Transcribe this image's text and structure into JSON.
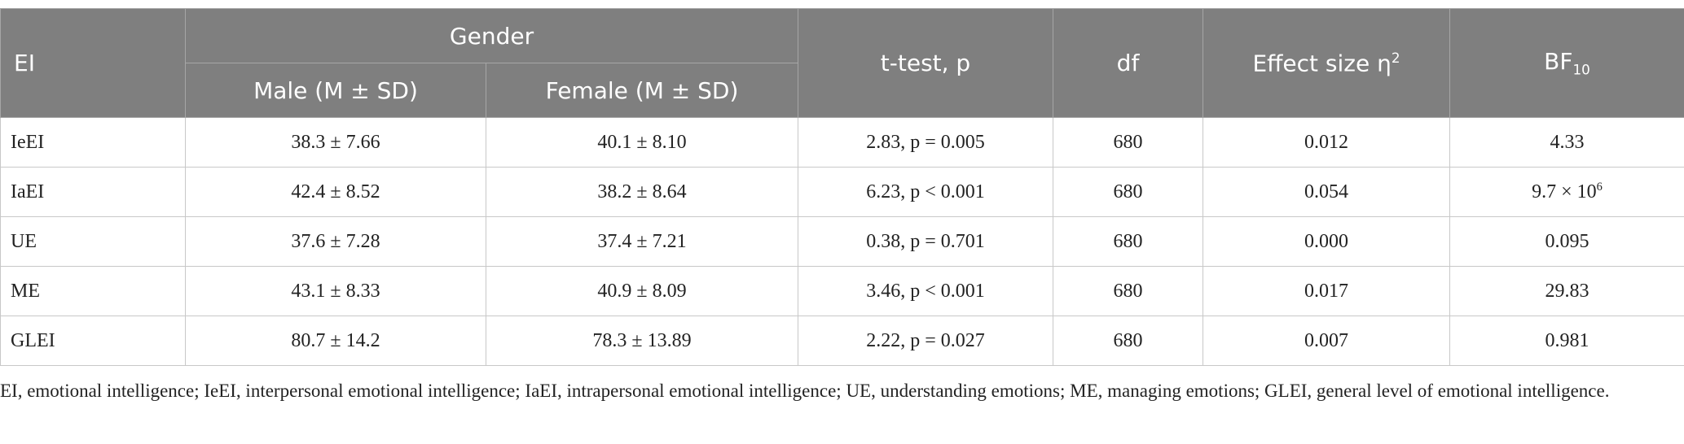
{
  "table": {
    "header": {
      "ei": "EI",
      "gender": "Gender",
      "male": "Male (M ± SD)",
      "female": "Female (M ± SD)",
      "ttest": "t-test, p",
      "df": "df",
      "effect": {
        "text": "Effect size η",
        "sup": "2"
      },
      "bf": {
        "text": "BF",
        "sub": "10"
      }
    },
    "rows": [
      [
        "IeEI",
        "38.3 ± 7.66",
        "40.1 ± 8.10",
        "2.83, p = 0.005",
        "680",
        "0.012",
        "4.33"
      ],
      [
        "IaEI",
        "42.4 ± 8.52",
        "38.2 ± 8.64",
        "6.23, p < 0.001",
        "680",
        "0.054",
        {
          "text": "9.7 × 10",
          "sup": "6"
        }
      ],
      [
        "UE",
        "37.6 ± 7.28",
        "37.4 ± 7.21",
        "0.38, p = 0.701",
        "680",
        "0.000",
        "0.095"
      ],
      [
        "ME",
        "43.1 ± 8.33",
        "40.9 ± 8.09",
        "3.46, p < 0.001",
        "680",
        "0.017",
        "29.83"
      ],
      [
        "GLEI",
        "80.7 ± 14.2",
        "78.3 ± 13.89",
        "2.22, p = 0.027",
        "680",
        "0.007",
        "0.981"
      ]
    ]
  },
  "footnote": "EI, emotional intelligence; IeEI, interpersonal emotional intelligence; IaEI, intrapersonal emotional intelligence; UE, understanding emotions; ME, managing emotions; GLEI, general level of emotional intelligence."
}
